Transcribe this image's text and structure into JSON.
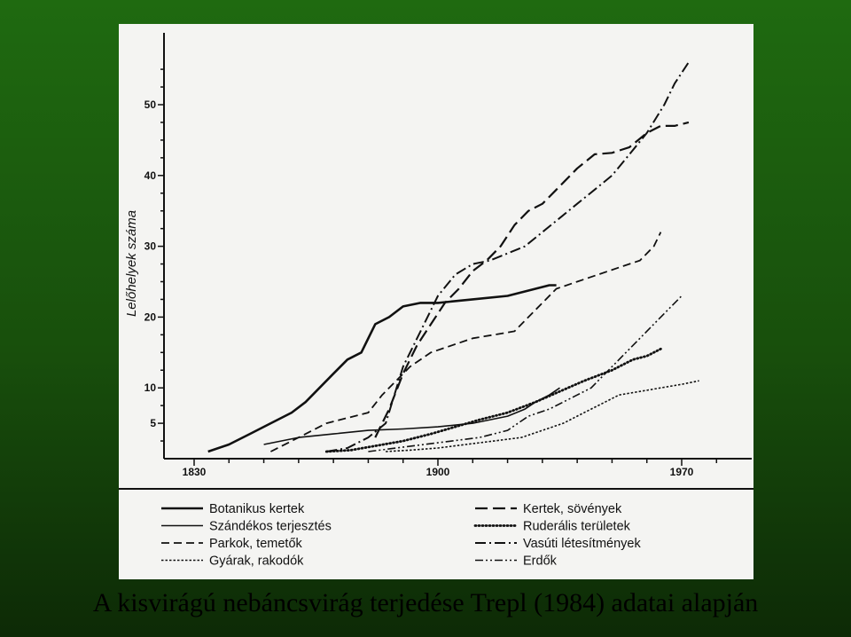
{
  "caption": "A kisvirágú nebáncsvirág terjedése Trepl (1984) adatai alapján",
  "colors": {
    "background_top": "#1f6a10",
    "background_bottom": "#0d2a06",
    "paper": "#f4f4f2",
    "ink": "#111111"
  },
  "chart_data": {
    "type": "line",
    "ylabel": "Lelőhelyek száma",
    "xlabel": "",
    "x_ticks": [
      1830,
      1900,
      1970
    ],
    "y_ticks": [
      5,
      10,
      20,
      30,
      40,
      50
    ],
    "xlim": [
      1825,
      1980
    ],
    "ylim": [
      0,
      57
    ],
    "grid": false,
    "legend_position": "bottom",
    "series": [
      {
        "name": "Botanikus kertek",
        "style": "solid",
        "x": [
          1834,
          1840,
          1846,
          1852,
          1858,
          1862,
          1866,
          1870,
          1874,
          1878,
          1882,
          1886,
          1890,
          1895,
          1900,
          1910,
          1920,
          1928,
          1932,
          1934
        ],
        "y": [
          1,
          2,
          3.5,
          5,
          6.5,
          8,
          10,
          12,
          14,
          15,
          19,
          20,
          21.5,
          22,
          22,
          22.5,
          23,
          24,
          24.5,
          24.5
        ]
      },
      {
        "name": "Kertek, sövények",
        "style": "long-dash",
        "x": [
          1882,
          1886,
          1890,
          1894,
          1898,
          1902,
          1906,
          1910,
          1914,
          1918,
          1922,
          1926,
          1930,
          1934,
          1940,
          1945,
          1950,
          1955,
          1960,
          1964,
          1968,
          1972
        ],
        "y": [
          3,
          7,
          12,
          16,
          19,
          22,
          24,
          26.5,
          28,
          30,
          33,
          35,
          36,
          38,
          41,
          43,
          43.2,
          44,
          46,
          47,
          47,
          47.5
        ]
      },
      {
        "name": "Szándékos terjesztés",
        "style": "thin-solid",
        "x": [
          1850,
          1860,
          1870,
          1880,
          1890,
          1900,
          1910,
          1920,
          1925,
          1928,
          1932,
          1935
        ],
        "y": [
          2,
          3,
          3.5,
          4,
          4.2,
          4.5,
          5,
          6,
          7,
          8,
          9,
          10
        ]
      },
      {
        "name": "Ruderális területek",
        "style": "dotted",
        "x": [
          1868,
          1875,
          1882,
          1890,
          1898,
          1905,
          1912,
          1920,
          1928,
          1935,
          1942,
          1950,
          1956,
          1960,
          1964
        ],
        "y": [
          1,
          1.2,
          1.8,
          2.5,
          3.5,
          4.5,
          5.5,
          6.5,
          8,
          9.5,
          11,
          12.5,
          14,
          14.5,
          15.5
        ]
      },
      {
        "name": "Parkok, temetők",
        "style": "dash",
        "x": [
          1852,
          1860,
          1868,
          1876,
          1880,
          1884,
          1888,
          1892,
          1898,
          1904,
          1910,
          1916,
          1922,
          1926,
          1930,
          1934,
          1940,
          1946,
          1952,
          1958,
          1962,
          1964
        ],
        "y": [
          1,
          3,
          5,
          6,
          6.5,
          9,
          11,
          13,
          15,
          16,
          17,
          17.5,
          18,
          20,
          22,
          24,
          25,
          26,
          27,
          28,
          30,
          32
        ]
      },
      {
        "name": "Vasúti létesítmények",
        "style": "dash-dot",
        "x": [
          1868,
          1874,
          1880,
          1885,
          1890,
          1895,
          1900,
          1905,
          1910,
          1915,
          1920,
          1925,
          1930,
          1935,
          1940,
          1945,
          1950,
          1955,
          1960,
          1965,
          1968,
          1972
        ],
        "y": [
          1,
          1.5,
          3,
          5,
          13,
          18,
          23,
          26,
          27.5,
          28,
          29,
          30,
          32,
          34,
          36,
          38,
          40,
          43,
          46,
          50,
          53,
          56
        ]
      },
      {
        "name": "Gyárak, rakodók",
        "style": "short-dot",
        "x": [
          1885,
          1892,
          1900,
          1908,
          1916,
          1924,
          1930,
          1936,
          1940,
          1944,
          1948,
          1952,
          1958,
          1964,
          1970,
          1975
        ],
        "y": [
          1,
          1.2,
          1.5,
          2,
          2.5,
          3,
          4,
          5,
          6,
          7,
          8,
          9,
          9.5,
          10,
          10.5,
          11
        ]
      },
      {
        "name": "Erdők",
        "style": "dash-dot-dot",
        "x": [
          1880,
          1888,
          1896,
          1904,
          1912,
          1920,
          1926,
          1932,
          1936,
          1940,
          1944,
          1948,
          1952,
          1958,
          1964,
          1970
        ],
        "y": [
          1,
          1.5,
          2,
          2.5,
          3,
          4,
          6,
          7,
          8,
          9,
          10,
          12,
          14,
          17,
          20,
          23
        ]
      }
    ],
    "legend": [
      {
        "label": "Botanikus kertek",
        "style": "solid"
      },
      {
        "label": "Szándékos terjesztés",
        "style": "thin-solid"
      },
      {
        "label": "Parkok, temetők",
        "style": "dash"
      },
      {
        "label": "Gyárak, rakodók",
        "style": "short-dot"
      },
      {
        "label": "Kertek, sövények",
        "style": "long-dash"
      },
      {
        "label": "Ruderális területek",
        "style": "dotted"
      },
      {
        "label": "Vasúti létesítmények",
        "style": "dash-dot"
      },
      {
        "label": "Erdők",
        "style": "dash-dot-dot"
      }
    ]
  }
}
